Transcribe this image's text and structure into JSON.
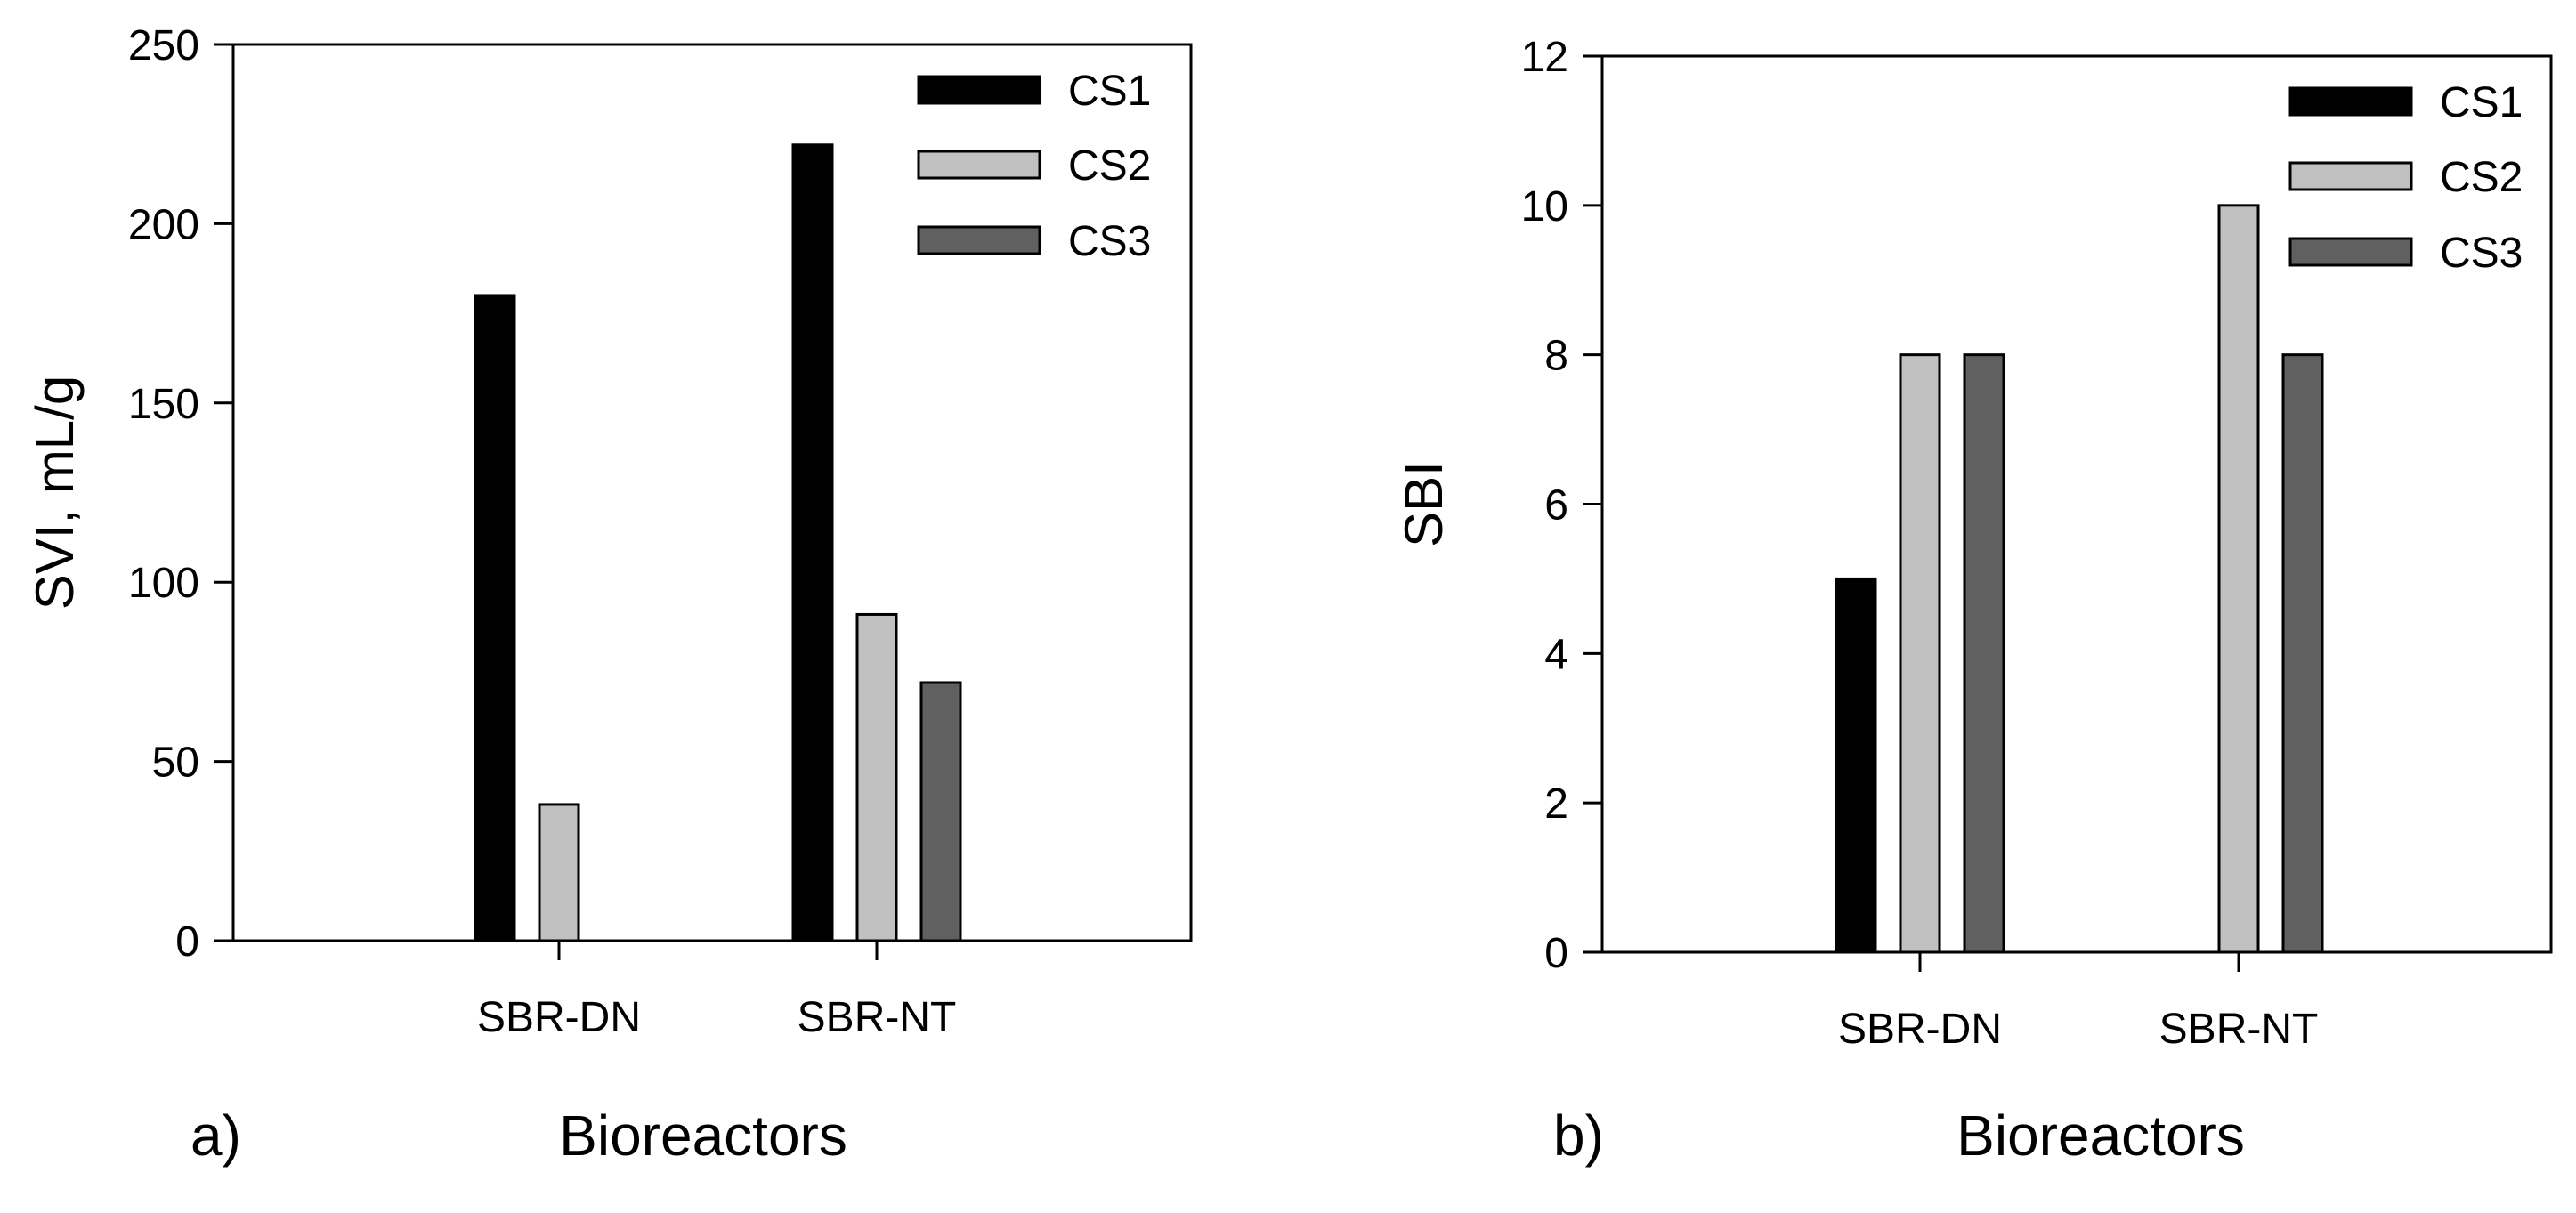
{
  "chart_data": [
    {
      "type": "bar",
      "panel_label": "a)",
      "categories": [
        "SBR-DN",
        "SBR-NT"
      ],
      "series": [
        {
          "name": "CS1",
          "color": "#000000",
          "values": [
            180,
            222
          ]
        },
        {
          "name": "CS2",
          "color": "#c0c0c0",
          "values": [
            38,
            91
          ]
        },
        {
          "name": "CS3",
          "color": "#606060",
          "values": [
            0,
            72
          ]
        }
      ],
      "title": "",
      "xlabel": "Bioreactors",
      "ylabel": "SVI, mL/g",
      "ylim": [
        0,
        250
      ],
      "yticks": [
        0,
        50,
        100,
        150,
        200,
        250
      ],
      "legend_position": "top-right",
      "grid": false
    },
    {
      "type": "bar",
      "panel_label": "b)",
      "categories": [
        "SBR-DN",
        "SBR-NT"
      ],
      "series": [
        {
          "name": "CS1",
          "color": "#000000",
          "values": [
            5,
            0
          ]
        },
        {
          "name": "CS2",
          "color": "#c0c0c0",
          "values": [
            8,
            10
          ]
        },
        {
          "name": "CS3",
          "color": "#606060",
          "values": [
            8,
            8
          ]
        }
      ],
      "title": "",
      "xlabel": "Bioreactors",
      "ylabel": "SBI",
      "ylim": [
        0,
        12
      ],
      "yticks": [
        0,
        2,
        4,
        6,
        8,
        10,
        12
      ],
      "legend_position": "top-right",
      "grid": false
    }
  ]
}
